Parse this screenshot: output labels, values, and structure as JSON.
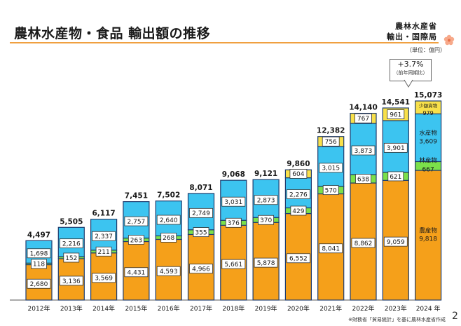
{
  "title": "農林水産物・食品 輸出額の推移",
  "org_line1": "農林水産省",
  "org_line2": "輸出・国際局",
  "unit_note": "（単位：億円）",
  "callout_main": "+3.7%",
  "callout_sub": "（前年同期比）",
  "source_note": "※財務省「貿易統計」を基に農林水産省作成",
  "page_number": "2",
  "colors": {
    "agri": "#f5a01a",
    "forest": "#7be04a",
    "fish": "#3cc4f0",
    "small": "#f8e04a",
    "border": "#1f3d6e"
  },
  "chart_data": {
    "type": "bar",
    "stacked": true,
    "categories": [
      "2012年",
      "2013年",
      "2014年",
      "2015年",
      "2016年",
      "2017年",
      "2018年",
      "2019年",
      "2020年",
      "2021年",
      "2022年",
      "2023年",
      "2024 年"
    ],
    "series": [
      {
        "name": "農産物",
        "values": [
          2680,
          3136,
          3569,
          4431,
          4593,
          4966,
          5661,
          5878,
          6552,
          8041,
          8862,
          9059,
          9818
        ]
      },
      {
        "name": "林産物",
        "values": [
          118,
          152,
          211,
          263,
          268,
          355,
          376,
          370,
          429,
          570,
          638,
          621,
          667
        ]
      },
      {
        "name": "水産物",
        "values": [
          1698,
          2216,
          2337,
          2757,
          2640,
          2749,
          3031,
          2873,
          2276,
          3015,
          3873,
          3901,
          3609
        ]
      },
      {
        "name": "少額貨物",
        "values": [
          null,
          null,
          null,
          null,
          null,
          null,
          null,
          null,
          604,
          756,
          767,
          961,
          979
        ]
      }
    ],
    "totals": [
      4497,
      5505,
      6117,
      7451,
      7502,
      8071,
      9068,
      9121,
      9860,
      12382,
      14140,
      14541,
      15073
    ],
    "total_labels": [
      "4,497",
      "5,505",
      "6,117",
      "7,451",
      "7,502",
      "8,071",
      "9,068",
      "9,121",
      "9,860",
      "12,382",
      "14,140",
      "14,541",
      "15,073"
    ],
    "value_labels": {
      "農産物": [
        "2,680",
        "3,136",
        "3,569",
        "4,431",
        "4,593",
        "4,966",
        "5,661",
        "5,878",
        "6,552",
        "8,041",
        "8,862",
        "9,059",
        "9,818"
      ],
      "林産物": [
        "118",
        "152",
        "211",
        "263",
        "268",
        "355",
        "376",
        "370",
        "429",
        "570",
        "638",
        "621",
        "667"
      ],
      "水産物": [
        "1,698",
        "2,216",
        "2,337",
        "2,757",
        "2,640",
        "2,749",
        "3,031",
        "2,873",
        "2,276",
        "3,015",
        "3,873",
        "3,901",
        "3,609"
      ],
      "少額貨物": [
        "",
        "",
        "",
        "",
        "",
        "",
        "",
        "",
        "604",
        "756",
        "767",
        "961",
        "979"
      ]
    },
    "ylim": [
      0,
      15073
    ],
    "legend_placement": "inside-last-bar",
    "grid": false
  }
}
